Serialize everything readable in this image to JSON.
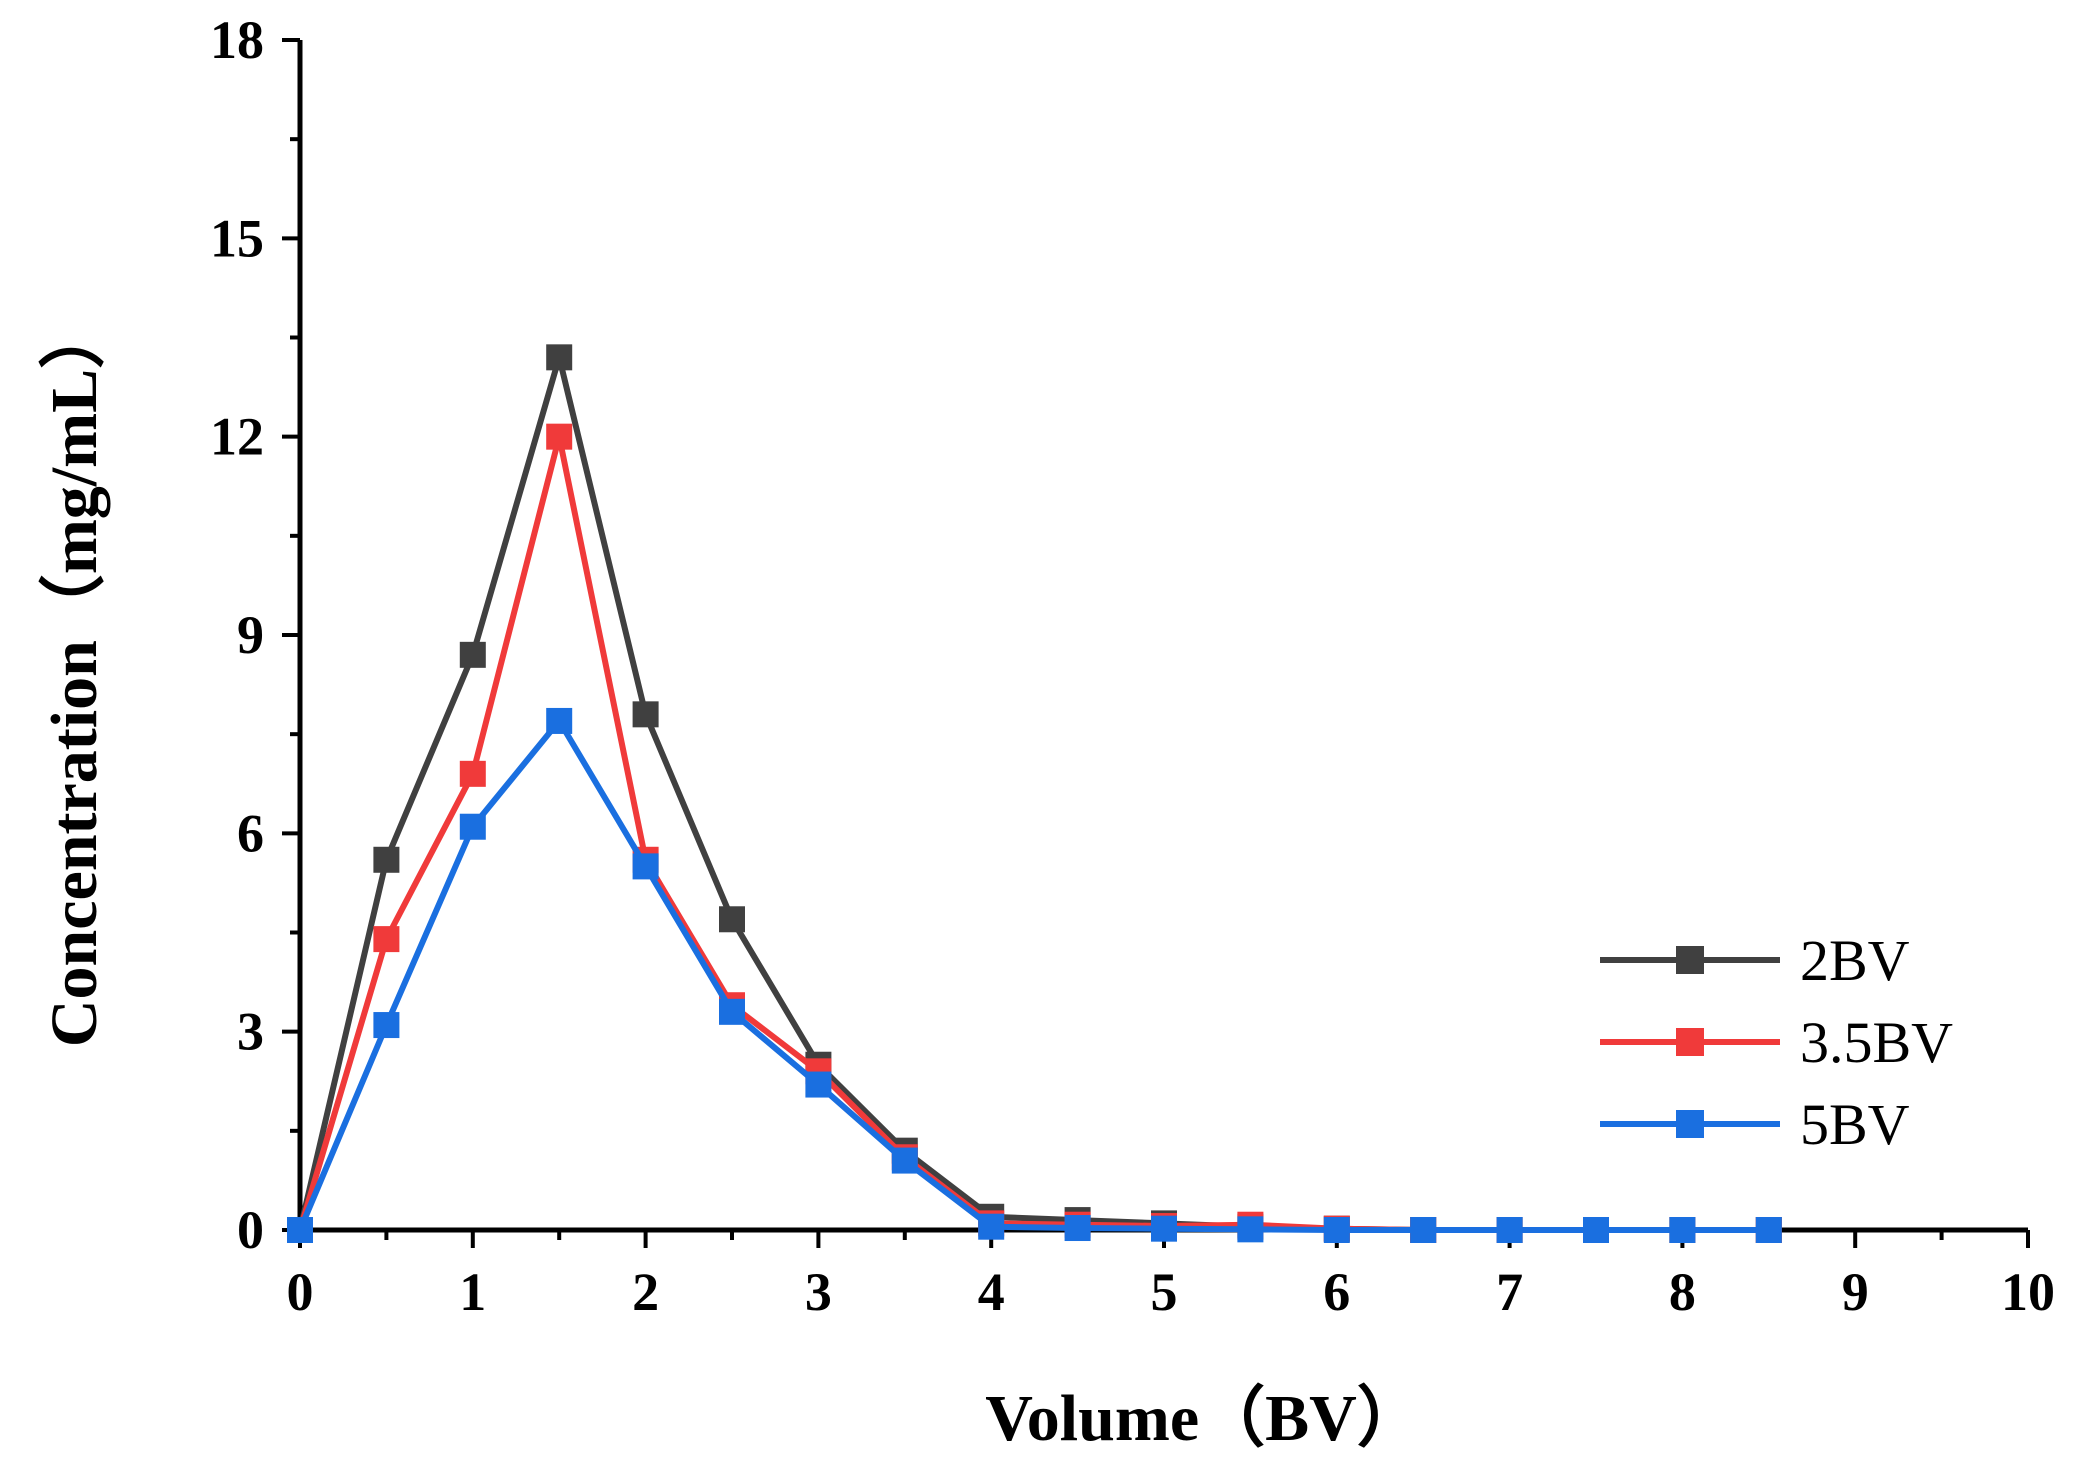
{
  "chart_data": {
    "type": "line",
    "title": "",
    "xlabel": "Volume（BV）",
    "ylabel": "Concentration（mg/mL）",
    "xlim": [
      0,
      10
    ],
    "ylim": [
      0,
      18
    ],
    "xticks": [
      "0",
      "1",
      "2",
      "3",
      "4",
      "5",
      "6",
      "7",
      "8",
      "9",
      "10"
    ],
    "yticks": [
      "0",
      "3",
      "6",
      "9",
      "12",
      "15",
      "18"
    ],
    "grid": false,
    "legend_position": "right-middle",
    "x": [
      0,
      0.5,
      1,
      1.5,
      2,
      2.5,
      3,
      3.5,
      4,
      4.5,
      5,
      5.5,
      6,
      6.5,
      7,
      7.5,
      8,
      8.5
    ],
    "series": [
      {
        "name": "2BV",
        "color": "#404040",
        "values": [
          0,
          5.6,
          8.7,
          13.2,
          7.8,
          4.7,
          2.5,
          1.2,
          0.2,
          0.15,
          0.1,
          0.05,
          0.02,
          0,
          0,
          0,
          0,
          0
        ]
      },
      {
        "name": "3.5BV",
        "color": "#f03a3a",
        "values": [
          0,
          4.4,
          6.9,
          12.0,
          5.6,
          3.4,
          2.4,
          1.1,
          0.1,
          0.08,
          0.06,
          0.08,
          0.02,
          0,
          0,
          0,
          0,
          0
        ]
      },
      {
        "name": "5BV",
        "color": "#1a6fe0",
        "values": [
          0,
          3.1,
          6.1,
          7.7,
          5.5,
          3.3,
          2.2,
          1.05,
          0.05,
          0.03,
          0.02,
          0.01,
          0,
          0,
          0,
          0,
          0,
          0
        ]
      }
    ]
  }
}
